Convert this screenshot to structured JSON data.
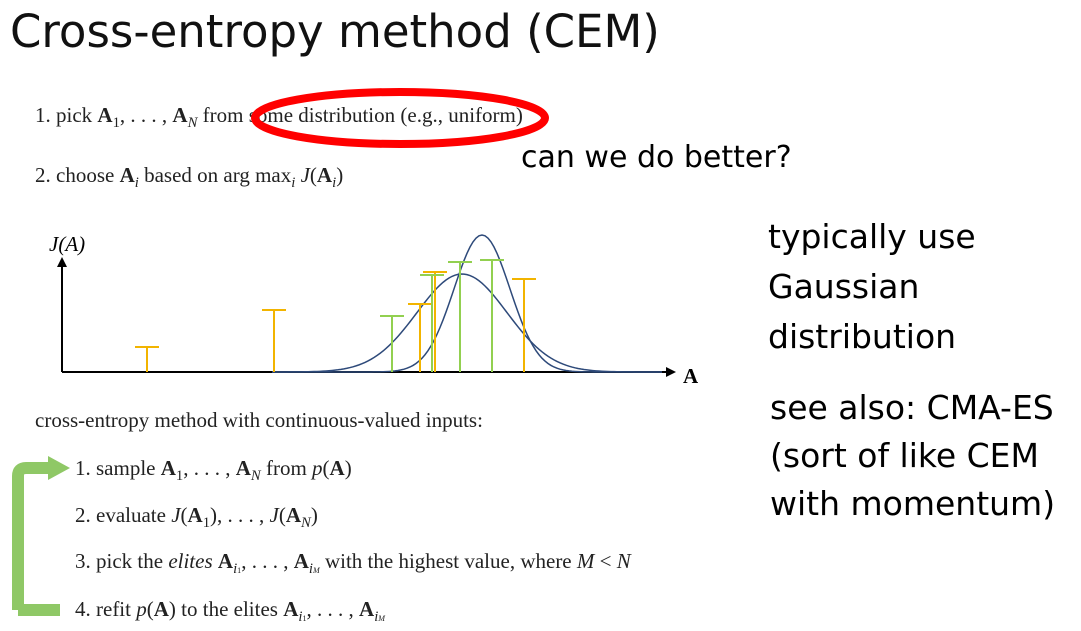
{
  "title": "Cross-entropy method (CEM)",
  "intro": {
    "step1_prefix": "1. pick ",
    "step1_vars": "A",
    "step1_ellipsis": "1, . . . , ",
    "step1_distribution": "from some distribution",
    "step1_example": "(e.g., uniform)",
    "step2_prefix": "2. choose ",
    "step2_mid": " based on arg max",
    "step2_tail": " J(A",
    "annotation": "can we do better?"
  },
  "side_notes": {
    "gaussian": [
      "typically use",
      "Gaussian",
      "distribution"
    ],
    "see_also": [
      "see also: CMA-ES",
      "(sort of like CEM",
      "with momentum)"
    ]
  },
  "chart": {
    "ylabel": "J(A)",
    "xlabel": "A"
  },
  "chart_data": {
    "type": "bar",
    "ylabel": "J(A)",
    "xlabel": "A",
    "series": [
      {
        "name": "",
        "color": "#f2b400",
        "x": [
          85,
          212,
          358,
          373,
          462
        ],
        "values": [
          25,
          62,
          68,
          100,
          93
        ]
      },
      {
        "name": "",
        "color": "#92d050",
        "x": [
          330,
          370,
          398,
          430
        ],
        "values": [
          56,
          97,
          110,
          112
        ]
      }
    ],
    "curves": [
      {
        "mean": 420,
        "sd": 28,
        "peak": 137
      },
      {
        "mean": 400,
        "sd": 45,
        "peak": 98
      }
    ],
    "colors": {
      "accent": "#ff0000",
      "curve": "#2e4a7a",
      "arrow": "#92d050"
    }
  },
  "cem": {
    "heading": "cross-entropy method with continuous-valued inputs:",
    "step1": "1. sample A1, . . . , AN from p(A)",
    "step2": "2. evaluate J(A1), . . . , J(AN)",
    "step3_a": "3. pick the ",
    "step3_elites": "elites",
    "step3_b": " Ai1, . . . , AiM with the highest value, where M < N",
    "step4": "4. refit p(A) to the elites Ai1, . . . , AiM"
  }
}
